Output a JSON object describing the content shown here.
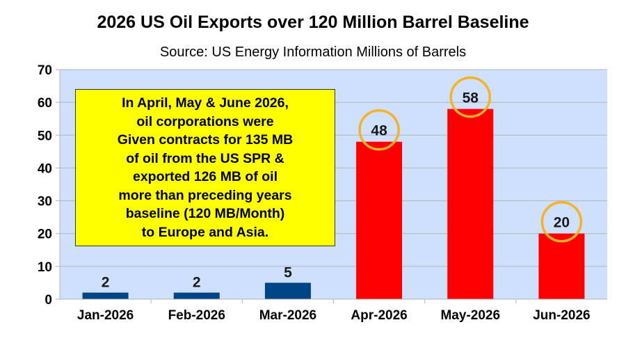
{
  "chart_data": {
    "type": "bar",
    "title": "2026 US Oil Exports over 120 Million Barrel Baseline",
    "subtitle": "Source: US Energy Information Millions of Barrels",
    "categories": [
      "Jan-2026",
      "Feb-2026",
      "Mar-2026",
      "Apr-2026",
      "May-2026",
      "Jun-2026"
    ],
    "values": [
      2,
      2,
      5,
      48,
      58,
      20
    ],
    "bar_colors": [
      "#004586",
      "#004586",
      "#004586",
      "#ff0000",
      "#ff0000",
      "#ff0000"
    ],
    "highlighted": [
      false,
      false,
      false,
      true,
      true,
      true
    ],
    "ylim": [
      0,
      70
    ],
    "yticks": [
      0,
      10,
      20,
      30,
      40,
      50,
      60,
      70
    ],
    "grid": true,
    "plot_background": "#cfe0fc",
    "highlight_circle_color": "#f5b323",
    "annotation": "In April, May & June 2026,\noil corporations were\nGiven contracts for 135 MB\nof oil from the US SPR &\nexported 126 MB of oil\nmore than preceding years\nbaseline (120 MB/Month)\nto Europe and Asia.",
    "annotation_background": "#ffff00"
  }
}
